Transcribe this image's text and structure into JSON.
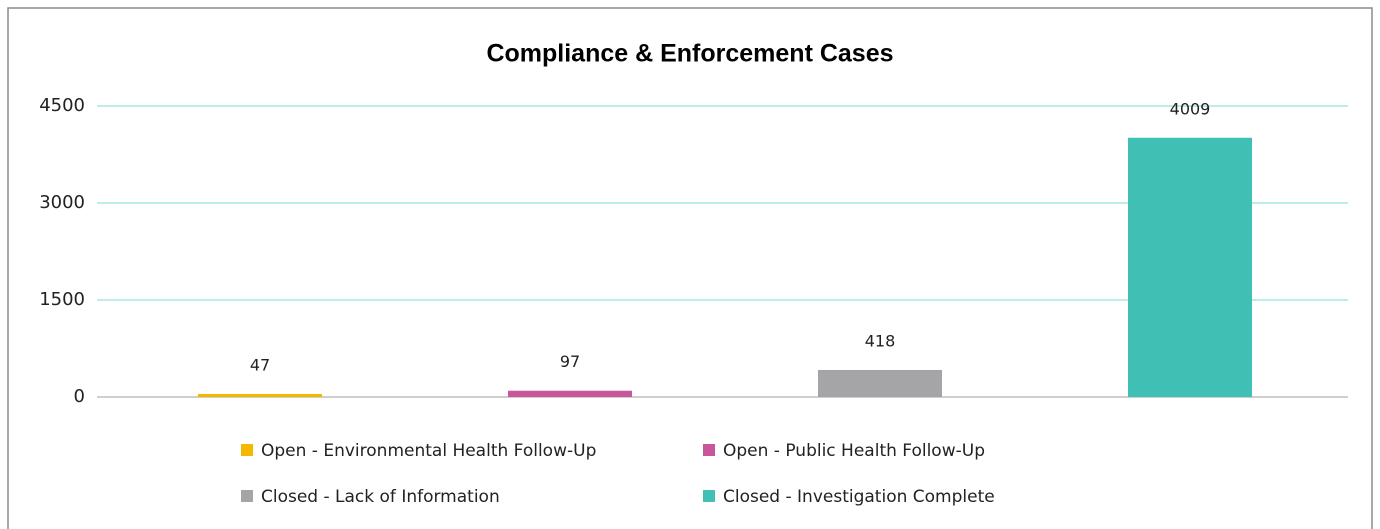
{
  "chart_data": {
    "type": "bar",
    "title": "Compliance & Enforcement Cases",
    "categories": [
      null,
      null,
      null,
      null
    ],
    "series": [
      {
        "name": "Open - Environmental Health Follow-Up",
        "color": "#f5b800",
        "values": [
          47,
          null,
          null,
          null
        ]
      },
      {
        "name": "Open - Public Health Follow-Up",
        "color": "#c9559a",
        "values": [
          null,
          97,
          null,
          null
        ]
      },
      {
        "name": "Closed - Lack of Information",
        "color": "#a5a5a7",
        "values": [
          null,
          null,
          418,
          null
        ]
      },
      {
        "name": "Closed - Investigation Complete",
        "color": "#40bfb4",
        "values": [
          null,
          null,
          null,
          4009
        ]
      }
    ],
    "ylim": [
      0,
      4500
    ],
    "yticks": [
      0,
      1500,
      3000,
      4500
    ],
    "grid": true,
    "legend": "bottom"
  }
}
